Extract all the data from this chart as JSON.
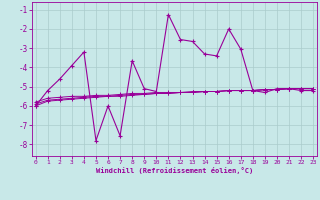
{
  "xlabel": "Windchill (Refroidissement éolien,°C)",
  "bg_color": "#c8e8e8",
  "line_color": "#990099",
  "grid_color": "#aacccc",
  "x_ticks": [
    0,
    1,
    2,
    3,
    4,
    5,
    6,
    7,
    8,
    9,
    10,
    11,
    12,
    13,
    14,
    15,
    16,
    17,
    18,
    19,
    20,
    21,
    22,
    23
  ],
  "y_ticks": [
    -8,
    -7,
    -6,
    -5,
    -4,
    -3,
    -2,
    -1
  ],
  "xlim": [
    -0.3,
    23.3
  ],
  "ylim": [
    -8.6,
    -0.6
  ],
  "series1": {
    "x": [
      0,
      1,
      2,
      3,
      4,
      5,
      6,
      7,
      8,
      9,
      10,
      11,
      12,
      13,
      14,
      15,
      16,
      17,
      18,
      19,
      20,
      21,
      22,
      23
    ],
    "y": [
      -6.0,
      -5.2,
      -4.6,
      -3.9,
      -3.2,
      -7.8,
      -6.0,
      -7.55,
      -3.65,
      -5.1,
      -5.25,
      -1.25,
      -2.55,
      -2.65,
      -3.3,
      -3.4,
      -2.0,
      -3.05,
      -5.2,
      -5.3,
      -5.1,
      -5.1,
      -5.2,
      -5.2
    ]
  },
  "series2": {
    "x": [
      0,
      1,
      2,
      3,
      4,
      5,
      6,
      7,
      8,
      9,
      10,
      11,
      12,
      13,
      14,
      15,
      16,
      17,
      18,
      19,
      20,
      21,
      22,
      23
    ],
    "y": [
      -5.8,
      -5.6,
      -5.55,
      -5.5,
      -5.5,
      -5.45,
      -5.45,
      -5.4,
      -5.35,
      -5.35,
      -5.3,
      -5.3,
      -5.3,
      -5.25,
      -5.25,
      -5.25,
      -5.2,
      -5.2,
      -5.2,
      -5.15,
      -5.15,
      -5.1,
      -5.1,
      -5.1
    ]
  },
  "series3": {
    "x": [
      0,
      1,
      2,
      3,
      4,
      5,
      6,
      7,
      8,
      9,
      10,
      11,
      12,
      13,
      14,
      15,
      16,
      17,
      18,
      19,
      20,
      21,
      22,
      23
    ],
    "y": [
      -5.9,
      -5.7,
      -5.65,
      -5.6,
      -5.55,
      -5.5,
      -5.5,
      -5.45,
      -5.4,
      -5.4,
      -5.35,
      -5.35,
      -5.3,
      -5.3,
      -5.25,
      -5.25,
      -5.2,
      -5.2,
      -5.2,
      -5.15,
      -5.15,
      -5.1,
      -5.1,
      -5.1
    ]
  },
  "series4": {
    "x": [
      0,
      1,
      2,
      3,
      4,
      5,
      6,
      7,
      8,
      9,
      10,
      11,
      12,
      13,
      14,
      15,
      16,
      17,
      18,
      19,
      20,
      21,
      22,
      23
    ],
    "y": [
      -6.0,
      -5.75,
      -5.7,
      -5.65,
      -5.6,
      -5.55,
      -5.5,
      -5.5,
      -5.45,
      -5.4,
      -5.35,
      -5.35,
      -5.3,
      -5.3,
      -5.25,
      -5.25,
      -5.2,
      -5.2,
      -5.2,
      -5.15,
      -5.15,
      -5.1,
      -5.1,
      -5.1
    ]
  }
}
